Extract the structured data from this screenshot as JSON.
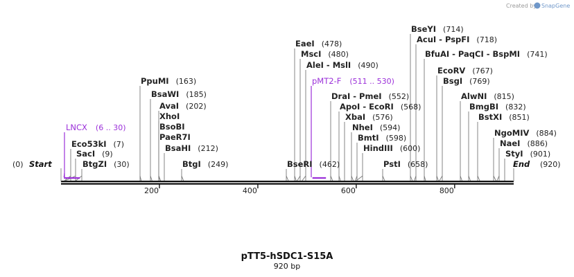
{
  "credit": "Created by",
  "brand": "SnapGene",
  "plasmid": {
    "name": "pTT5-hSDC1-S15A",
    "length_label": "920 bp",
    "length": 920
  },
  "axis": {
    "ticks": [
      200,
      400,
      600,
      800
    ]
  },
  "ends": {
    "start_pos": "(0)",
    "start_label": "Start",
    "end_label": "End",
    "end_pos": "(920)"
  },
  "sites": [
    {
      "name": "Eco53kI",
      "pos": 7,
      "label": "(7)"
    },
    {
      "name": "SacI",
      "pos": 9,
      "label": "(9)"
    },
    {
      "name": "BtgZI",
      "pos": 30,
      "label": "(30)"
    },
    {
      "name": "PpuMI",
      "pos": 163,
      "label": "(163)"
    },
    {
      "name": "BsaWI",
      "pos": 185,
      "label": "(185)"
    },
    {
      "name": "AvaI",
      "pos": 202,
      "label": "(202)"
    },
    {
      "name": "XhoI",
      "pos": 202,
      "label": ""
    },
    {
      "name": "BsoBI",
      "pos": 202,
      "label": ""
    },
    {
      "name": "PaeR7I",
      "pos": 202,
      "label": ""
    },
    {
      "name": "BsaHI",
      "pos": 212,
      "label": "(212)"
    },
    {
      "name": "BtgI",
      "pos": 249,
      "label": "(249)"
    },
    {
      "name": "BseRI",
      "pos": 462,
      "label": "(462)"
    },
    {
      "name": "EaeI",
      "pos": 478,
      "label": "(478)"
    },
    {
      "name": "MscI",
      "pos": 480,
      "label": "(480)"
    },
    {
      "name": "AleI  -  MslI",
      "pos": 490,
      "label": "(490)"
    },
    {
      "name": "DraI  -  PmeI",
      "pos": 552,
      "label": "(552)"
    },
    {
      "name": "ApoI  -  EcoRI",
      "pos": 568,
      "label": "(568)"
    },
    {
      "name": "XbaI",
      "pos": 576,
      "label": "(576)"
    },
    {
      "name": "NheI",
      "pos": 594,
      "label": "(594)"
    },
    {
      "name": "BmtI",
      "pos": 598,
      "label": "(598)"
    },
    {
      "name": "HindIII",
      "pos": 600,
      "label": "(600)"
    },
    {
      "name": "PstI",
      "pos": 658,
      "label": "(658)"
    },
    {
      "name": "BseYI",
      "pos": 714,
      "label": "(714)"
    },
    {
      "name": "AcuI  -  PspFI",
      "pos": 718,
      "label": "(718)"
    },
    {
      "name": "BfuAI  -  PaqCI  -  BspMI",
      "pos": 741,
      "label": "(741)"
    },
    {
      "name": "EcoRV",
      "pos": 767,
      "label": "(767)"
    },
    {
      "name": "BsgI",
      "pos": 769,
      "label": "(769)"
    },
    {
      "name": "AlwNI",
      "pos": 815,
      "label": "(815)"
    },
    {
      "name": "BmgBI",
      "pos": 832,
      "label": "(832)"
    },
    {
      "name": "BstXI",
      "pos": 851,
      "label": "(851)"
    },
    {
      "name": "NgoMIV",
      "pos": 884,
      "label": "(884)"
    },
    {
      "name": "NaeI",
      "pos": 886,
      "label": "(886)"
    },
    {
      "name": "StyI",
      "pos": 901,
      "label": "(901)"
    }
  ],
  "features": [
    {
      "name": "LNCX",
      "start": 6,
      "end": 30,
      "label": "(6 .. 30)",
      "color": "#9b30d9"
    },
    {
      "name": "pMT2-F",
      "start": 511,
      "end": 530,
      "label": "(511 .. 530)",
      "color": "#9b30d9"
    }
  ]
}
